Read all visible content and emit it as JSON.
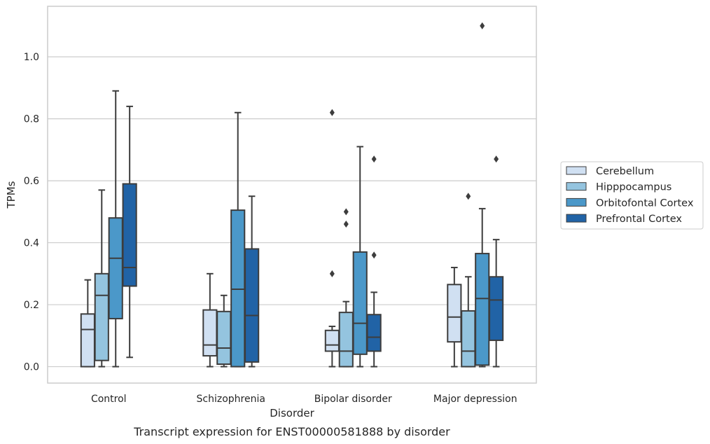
{
  "chart_data": {
    "type": "box",
    "xlabel": "Disorder",
    "ylabel": "TPMs",
    "caption": "Transcript expression for ENST00000581888 by disorder",
    "ylim": [
      -0.053,
      1.163
    ],
    "yticks": [
      "0.0",
      "0.2",
      "0.4",
      "0.6",
      "0.8",
      "1.0"
    ],
    "grid": "horizontal",
    "legend_placement": "right",
    "categories": [
      "Control",
      "Schizophrenia",
      "Bipolar disorder",
      "Major depression"
    ],
    "series": [
      {
        "name": "Cerebellum",
        "color": "#d0e0f2",
        "boxes": [
          {
            "whislo": 0.0,
            "q1": 0.0,
            "med": 0.12,
            "q3": 0.17,
            "whishi": 0.28,
            "fliers": []
          },
          {
            "whislo": 0.0,
            "q1": 0.035,
            "med": 0.07,
            "q3": 0.183,
            "whishi": 0.3,
            "fliers": []
          },
          {
            "whislo": 0.0,
            "q1": 0.05,
            "med": 0.07,
            "q3": 0.117,
            "whishi": 0.13,
            "fliers": [
              0.3,
              0.82
            ]
          },
          {
            "whislo": 0.0,
            "q1": 0.08,
            "med": 0.16,
            "q3": 0.265,
            "whishi": 0.32,
            "fliers": []
          }
        ]
      },
      {
        "name": "Hipppocampus",
        "color": "#94c4df",
        "boxes": [
          {
            "whislo": 0.0,
            "q1": 0.02,
            "med": 0.23,
            "q3": 0.3,
            "whishi": 0.57,
            "fliers": []
          },
          {
            "whislo": 0.0,
            "q1": 0.008,
            "med": 0.06,
            "q3": 0.178,
            "whishi": 0.23,
            "fliers": []
          },
          {
            "whislo": 0.0,
            "q1": 0.0,
            "med": 0.05,
            "q3": 0.175,
            "whishi": 0.21,
            "fliers": [
              0.46,
              0.5
            ]
          },
          {
            "whislo": 0.0,
            "q1": 0.0,
            "med": 0.05,
            "q3": 0.18,
            "whishi": 0.29,
            "fliers": [
              0.55
            ]
          }
        ]
      },
      {
        "name": "Orbitofontal Cortex",
        "color": "#4b98c9",
        "boxes": [
          {
            "whislo": 0.0,
            "q1": 0.155,
            "med": 0.35,
            "q3": 0.48,
            "whishi": 0.89,
            "fliers": []
          },
          {
            "whislo": 0.0,
            "q1": 0.0,
            "med": 0.25,
            "q3": 0.505,
            "whishi": 0.82,
            "fliers": []
          },
          {
            "whislo": 0.0,
            "q1": 0.04,
            "med": 0.14,
            "q3": 0.37,
            "whishi": 0.71,
            "fliers": []
          },
          {
            "whislo": 0.0,
            "q1": 0.005,
            "med": 0.22,
            "q3": 0.365,
            "whishi": 0.51,
            "fliers": [
              1.1
            ]
          }
        ]
      },
      {
        "name": "Prefrontal Cortex",
        "color": "#2163a6",
        "boxes": [
          {
            "whislo": 0.03,
            "q1": 0.26,
            "med": 0.32,
            "q3": 0.59,
            "whishi": 0.84,
            "fliers": []
          },
          {
            "whislo": 0.0,
            "q1": 0.015,
            "med": 0.165,
            "q3": 0.38,
            "whishi": 0.55,
            "fliers": []
          },
          {
            "whislo": 0.0,
            "q1": 0.05,
            "med": 0.095,
            "q3": 0.168,
            "whishi": 0.24,
            "fliers": [
              0.36,
              0.67
            ]
          },
          {
            "whislo": 0.0,
            "q1": 0.085,
            "med": 0.215,
            "q3": 0.29,
            "whishi": 0.41,
            "fliers": [
              0.67
            ]
          }
        ]
      }
    ]
  }
}
